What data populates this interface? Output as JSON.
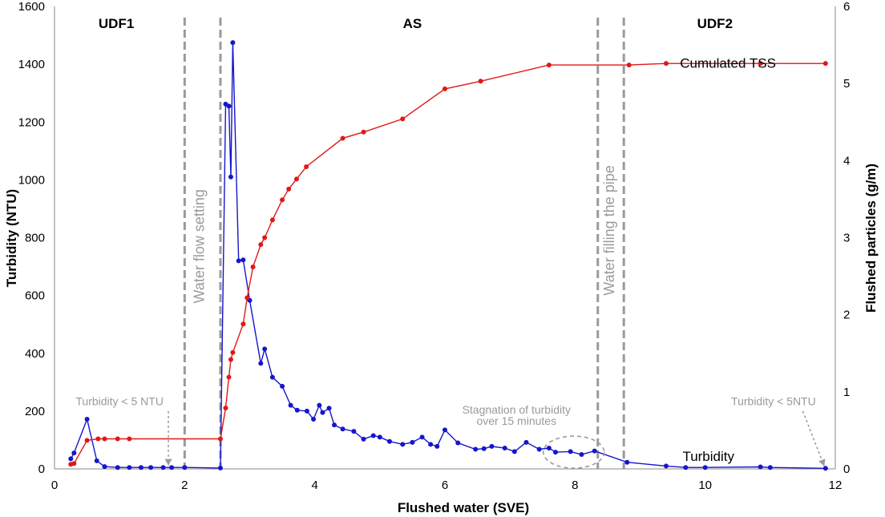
{
  "chart_data": {
    "type": "line",
    "xlabel": "Flushed water (SVE)",
    "ylabel": "Turbidity (NTU)",
    "y2label": "Flushed particles (g/m)",
    "xlim": [
      0,
      12
    ],
    "ylim": [
      0,
      1600
    ],
    "y2lim": [
      0,
      6
    ],
    "x_ticks": [
      "0",
      "2",
      "4",
      "6",
      "8",
      "10",
      "12"
    ],
    "y_ticks": [
      "0",
      "200",
      "400",
      "600",
      "800",
      "1000",
      "1200",
      "1400",
      "1600"
    ],
    "y2_ticks": [
      "0",
      "1",
      "2",
      "3",
      "4",
      "5",
      "6"
    ],
    "grid": false,
    "series": [
      {
        "name": "Turbidity",
        "axis": "left",
        "color": "#1515cc",
        "x": [
          0.25,
          0.3,
          0.5,
          0.65,
          0.77,
          0.97,
          1.15,
          1.33,
          1.48,
          1.67,
          1.8,
          2.0,
          2.55,
          2.63,
          2.68,
          2.71,
          2.74,
          2.83,
          2.9,
          3.0,
          3.17,
          3.23,
          3.35,
          3.5,
          3.63,
          3.73,
          3.88,
          3.98,
          4.07,
          4.12,
          4.22,
          4.3,
          4.43,
          4.6,
          4.75,
          4.9,
          5.0,
          5.15,
          5.35,
          5.5,
          5.65,
          5.78,
          5.88,
          6.0,
          6.2,
          6.47,
          6.6,
          6.72,
          6.92,
          7.07,
          7.25,
          7.45,
          7.6,
          7.7,
          7.93,
          8.1,
          8.3,
          8.8,
          9.4,
          9.7,
          10.0,
          10.85,
          11.0,
          11.85
        ],
        "y": [
          35,
          55,
          172,
          28,
          8,
          5,
          5,
          5,
          5,
          5,
          5,
          5,
          3,
          1262,
          1255,
          1010,
          1475,
          720,
          723,
          583,
          365,
          415,
          317,
          286,
          220,
          203,
          200,
          172,
          220,
          195,
          210,
          152,
          138,
          130,
          103,
          115,
          110,
          95,
          85,
          92,
          110,
          85,
          78,
          135,
          90,
          68,
          70,
          78,
          72,
          60,
          92,
          68,
          72,
          58,
          60,
          50,
          62,
          23,
          10,
          5,
          5,
          7,
          5,
          2
        ]
      },
      {
        "name": "Cumulated TSS",
        "axis": "right",
        "color": "#e01818",
        "x": [
          0.25,
          0.3,
          0.5,
          0.67,
          0.77,
          0.97,
          1.15,
          2.55,
          2.63,
          2.68,
          2.71,
          2.74,
          2.9,
          2.96,
          3.05,
          3.17,
          3.23,
          3.35,
          3.5,
          3.6,
          3.72,
          3.87,
          4.43,
          4.75,
          5.35,
          6.0,
          6.55,
          7.6,
          8.83,
          9.4,
          10.85,
          11.85
        ],
        "y": [
          0.06,
          0.07,
          0.37,
          0.39,
          0.39,
          0.39,
          0.39,
          0.39,
          0.79,
          1.19,
          1.42,
          1.51,
          1.88,
          2.22,
          2.62,
          2.91,
          3.0,
          3.23,
          3.49,
          3.63,
          3.76,
          3.92,
          4.29,
          4.37,
          4.54,
          4.93,
          5.03,
          5.24,
          5.24,
          5.26,
          5.26,
          5.26
        ]
      }
    ],
    "vlines": [
      2.0,
      2.55,
      8.35,
      8.75
    ],
    "phases": [
      {
        "label": "UDF1",
        "x": 0.95
      },
      {
        "label": "AS",
        "x": 5.5
      },
      {
        "label": "UDF2",
        "x": 10.15
      }
    ],
    "series_labels": [
      {
        "text": "Cumulated TSS",
        "x": 10.35,
        "y": 1405
      },
      {
        "text": "Turbidity",
        "x": 10.05,
        "y": 45
      }
    ],
    "annotations": [
      {
        "text": "Water flow setting",
        "x": 2.3,
        "y": 770,
        "rotate": -90
      },
      {
        "text": "Water filling the pipe",
        "x": 8.6,
        "y": 825,
        "rotate": -90
      },
      {
        "text": "Turbidity < 5 NTU",
        "x": 1.0,
        "y": 220
      },
      {
        "text": "Turbidity < 5NTU",
        "x": 11.05,
        "y": 220
      },
      {
        "text": "Stagnation of turbidity",
        "x": 7.1,
        "y": 192
      },
      {
        "text": "over 15 minutes",
        "x": 7.1,
        "y": 152
      }
    ]
  }
}
